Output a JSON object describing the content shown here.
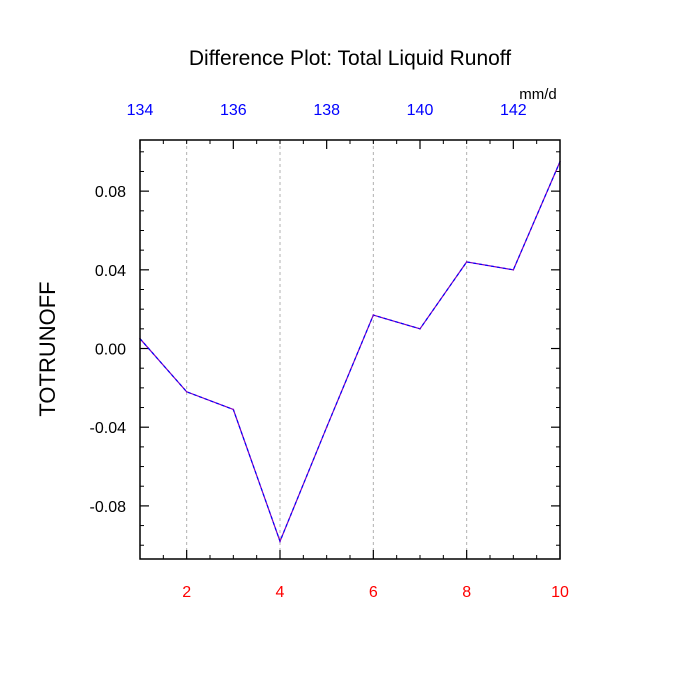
{
  "chart_data": {
    "type": "line",
    "title": "Difference Plot: Total Liquid Runoff",
    "ylabel": "TOTRUNOFF",
    "units_label": "mm/d",
    "x": [
      1,
      2,
      3,
      4,
      5,
      6,
      7,
      8,
      9,
      10
    ],
    "series": [
      {
        "values": [
          0.005,
          -0.022,
          -0.031,
          -0.098,
          -0.04,
          0.017,
          0.01,
          0.044,
          0.04,
          0.095
        ],
        "color": "#8000c0",
        "dash_color": "#0000ff",
        "style": "dashed"
      }
    ],
    "xlim": [
      1,
      10
    ],
    "ylim": [
      -0.107,
      0.106
    ],
    "bottom_axis": {
      "ticks": [
        2,
        4,
        6,
        8,
        10
      ],
      "tick_labels": [
        "2",
        "4",
        "6",
        "8",
        "10"
      ],
      "color": "#ff0000"
    },
    "top_axis": {
      "range": [
        134,
        143
      ],
      "ticks": [
        134,
        136,
        138,
        140,
        142
      ],
      "tick_labels": [
        "134",
        "136",
        "138",
        "140",
        "142"
      ],
      "color": "#0000ff"
    },
    "left_axis": {
      "ticks": [
        0.08,
        0.04,
        0.0,
        -0.04,
        -0.08
      ],
      "tick_labels": [
        "0.08",
        "0.04",
        "0.00",
        "-0.04",
        "-0.08"
      ],
      "color": "#000000"
    },
    "vertical_gridlines_at": [
      2,
      4,
      6,
      8
    ],
    "grid": "vertical-dotted",
    "legend": "none"
  }
}
